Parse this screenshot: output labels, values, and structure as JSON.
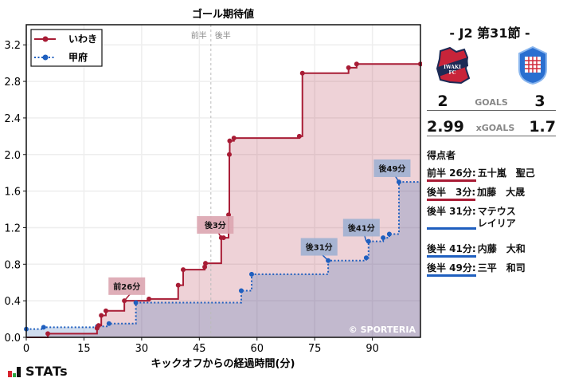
{
  "chart_data": {
    "type": "line",
    "title": "ゴール期待値",
    "xlabel": "キックオフからの経過時間(分)",
    "ylabel": "",
    "xlim": [
      0,
      102.5
    ],
    "ylim": [
      0,
      3.42
    ],
    "x_ticks": [
      0,
      15,
      30,
      45,
      60,
      75,
      90
    ],
    "y_ticks": [
      0.0,
      0.4,
      0.8,
      1.2,
      1.6,
      2.0,
      2.4,
      2.8,
      3.2
    ],
    "grid": true,
    "legend_position": "upper left",
    "half_divider": {
      "x": 48,
      "labels": [
        "前半",
        "後半"
      ]
    },
    "watermark": "© SPORTERIA",
    "series": [
      {
        "name": "いわき",
        "color": "#a81c35",
        "style": "solid",
        "points": [
          [
            0,
            0
          ],
          [
            5.6,
            0.04
          ],
          [
            18.4,
            0.1
          ],
          [
            18.8,
            0.13
          ],
          [
            19.5,
            0.24
          ],
          [
            20.7,
            0.29
          ],
          [
            25.5,
            0.4
          ],
          [
            31.9,
            0.42
          ],
          [
            39.5,
            0.57
          ],
          [
            40.8,
            0.74
          ],
          [
            46.4,
            0.77
          ],
          [
            46.6,
            0.81
          ],
          [
            50.7,
            1.09
          ],
          [
            51.3,
            1.09
          ],
          [
            52.6,
            1.34
          ],
          [
            52.8,
            2.0
          ],
          [
            52.9,
            2.15
          ],
          [
            54.0,
            2.18
          ],
          [
            71.0,
            2.2
          ],
          [
            71.8,
            2.89
          ],
          [
            83.8,
            2.95
          ],
          [
            85.9,
            2.99
          ],
          [
            102.5,
            2.99
          ]
        ]
      },
      {
        "name": "甲府",
        "color": "#1f5fbf",
        "style": "dotted",
        "points": [
          [
            0,
            0.09
          ],
          [
            4.5,
            0.11
          ],
          [
            18.5,
            0.12
          ],
          [
            21.5,
            0.15
          ],
          [
            28.5,
            0.38
          ],
          [
            55.9,
            0.51
          ],
          [
            58.6,
            0.69
          ],
          [
            78.5,
            0.84
          ],
          [
            88.4,
            0.87
          ],
          [
            89.0,
            1.05
          ],
          [
            92.8,
            1.09
          ],
          [
            94.4,
            1.13
          ],
          [
            96.9,
            1.7
          ],
          [
            102.5,
            1.7
          ]
        ]
      }
    ],
    "annotations": [
      {
        "text": "前26分",
        "x": 25.5,
        "y": 0.4,
        "team": "いわき",
        "box_x": 22,
        "box_y": 0.56
      },
      {
        "text": "後3分",
        "x": 50.7,
        "y": 1.09,
        "team": "いわき",
        "box_x": 45,
        "box_y": 1.23
      },
      {
        "text": "後31分",
        "x": 78.5,
        "y": 0.84,
        "team": "甲府",
        "box_x": 72,
        "box_y": 0.99
      },
      {
        "text": "後41分",
        "x": 88.4,
        "y": 1.05,
        "team": "甲府",
        "box_x": 83,
        "box_y": 1.2
      },
      {
        "text": "後49分",
        "x": 96.9,
        "y": 1.7,
        "team": "甲府",
        "box_x": 91,
        "box_y": 1.85
      }
    ]
  },
  "header": {
    "matchday": "- J2 第31節 -"
  },
  "teams": {
    "home": {
      "name": "いわき",
      "goals": "2",
      "xgoals": "2.99",
      "color": "#a81c35"
    },
    "away": {
      "name": "甲府",
      "goals": "3",
      "xgoals": "1.7",
      "color": "#1f5fbf"
    }
  },
  "labels": {
    "goals": "GOALS",
    "xgoals": "xGOALS",
    "scorers_title": "得点者"
  },
  "scorers": [
    {
      "time": "前半 26分:",
      "name": "五十嵐　聖己",
      "team": "home"
    },
    {
      "time": "後半　3分:",
      "name": "加藤　大晟",
      "team": "home"
    },
    {
      "time": "後半 31分:",
      "name": "マテウス\nレイリア",
      "team": "away"
    },
    {
      "time": "後半 41分:",
      "name": "内藤　大和",
      "team": "away"
    },
    {
      "time": "後半 49分:",
      "name": "三平　和司",
      "team": "away"
    }
  ],
  "brand": {
    "stats": "STATs"
  }
}
